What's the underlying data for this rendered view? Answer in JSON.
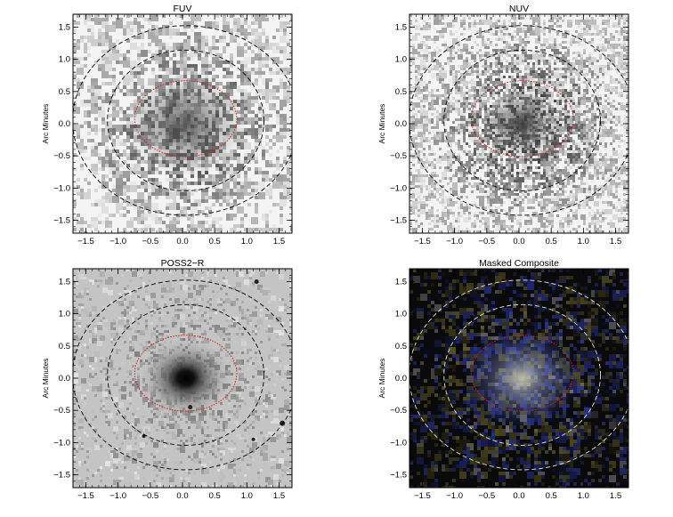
{
  "panels": [
    {
      "id": "fuv",
      "title": "FUV",
      "ylabel": "Arc Minutes",
      "colormap": "gray",
      "noise_density": 0.55,
      "galaxy_core": "faint"
    },
    {
      "id": "nuv",
      "title": "NUV",
      "ylabel": "Arc Minutes",
      "colormap": "gray",
      "noise_density": 0.6,
      "galaxy_core": "medium"
    },
    {
      "id": "poss2r",
      "title": "POSS2−R",
      "ylabel": "Arc Minutes",
      "colormap": "gray",
      "noise_density": 0.3,
      "galaxy_core": "bright"
    },
    {
      "id": "composite",
      "title": "Masked Composite",
      "ylabel": "Arc Minutes",
      "colormap": "rgb-dark",
      "noise_density": 0.5,
      "galaxy_core": "faint-color"
    }
  ],
  "axes": {
    "xlim": [
      -1.7,
      1.7
    ],
    "ylim": [
      -1.7,
      1.7
    ],
    "x_ticks": [
      "−1.5",
      "−1.0",
      "−0.5",
      "0.0",
      "0.5",
      "1.0",
      "1.5"
    ],
    "y_ticks": [
      "−1.5",
      "−1.0",
      "−0.5",
      "0.0",
      "0.5",
      "1.0",
      "1.5"
    ],
    "tick_values": [
      -1.5,
      -1.0,
      -0.5,
      0.0,
      0.5,
      1.0,
      1.5
    ]
  },
  "ellipses": {
    "inner_red_color": "#d22020",
    "dashed_color_gray_panels": "#000000",
    "dashed_color_composite": "#e8e8c8"
  }
}
